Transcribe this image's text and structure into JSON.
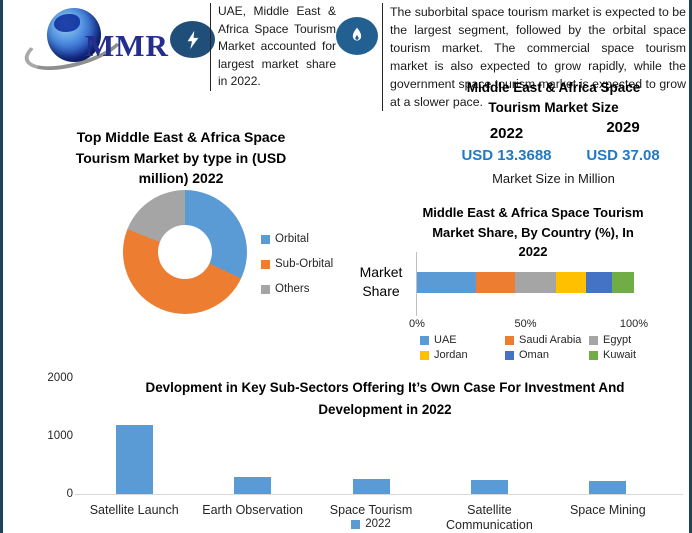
{
  "logo": {
    "text": "MMR"
  },
  "header": {
    "highlight": {
      "icon": "lightning-icon",
      "text": "UAE, Middle East & Africa Space Tourism Market accounted for largest market share in 2022."
    },
    "summary": {
      "icon": "flame-icon",
      "text": "The suborbital space tourism market is expected to be the largest segment, followed by the orbital space tourism market. The commercial space tourism market is also expected to grow rapidly, while the government space tourism market is expected to grow at a slower pace."
    }
  },
  "market_size": {
    "title": "Middle East & Africa Space\nTourism Market Size",
    "years": [
      {
        "year": "2022",
        "value": "USD 13.3688"
      },
      {
        "year": "2029",
        "value": "USD 37.08"
      }
    ],
    "caption": "Market Size in Million",
    "value_color": "#1e7ac8"
  },
  "chart_data": [
    {
      "type": "pie",
      "subtype": "donut",
      "title": "Top Middle East & Africa Space\nTourism Market by type in (USD\nmillion) 2022",
      "labels": [
        "Orbital",
        "Sub-Orbital",
        "Others"
      ],
      "values": [
        32,
        49,
        19
      ],
      "colors": [
        "#5B9BD5",
        "#ED7D31",
        "#A5A5A5"
      ],
      "legend_position": "right"
    },
    {
      "type": "bar",
      "subtype": "stacked-horizontal",
      "title": "Middle East & Africa Space Tourism\nMarket Share, By Country (%), In\n2022",
      "ylabel": "Market\nShare",
      "categories": [
        "Market Share"
      ],
      "series": [
        {
          "name": "UAE",
          "values": [
            27
          ],
          "color": "#5B9BD5"
        },
        {
          "name": "Saudi Arabia",
          "values": [
            18
          ],
          "color": "#ED7D31"
        },
        {
          "name": "Egypt",
          "values": [
            19
          ],
          "color": "#A5A5A5"
        },
        {
          "name": "Jordan",
          "values": [
            14
          ],
          "color": "#FFC000"
        },
        {
          "name": "Oman",
          "values": [
            12
          ],
          "color": "#4472C4"
        },
        {
          "name": "Kuwait",
          "values": [
            10
          ],
          "color": "#70AD47"
        }
      ],
      "xticks": [
        "0%",
        "50%",
        "100%"
      ],
      "xlim": [
        0,
        100
      ],
      "legend_position": "bottom"
    },
    {
      "type": "bar",
      "subtype": "vertical",
      "title": "Devlopment in Key Sub-Sectors Offering It’s Own Case For Investment And\nDevelopment in 2022",
      "categories": [
        "Satellite Launch",
        "Earth Observation",
        "Space Tourism",
        "Satellite Communication",
        "Space Mining"
      ],
      "values": [
        1190,
        300,
        265,
        245,
        225
      ],
      "bar_color": "#5B9BD5",
      "ylim": [
        0,
        2000
      ],
      "yticks": [
        0,
        1000,
        2000
      ],
      "legend": [
        "2022"
      ],
      "legend_position": "bottom"
    }
  ]
}
